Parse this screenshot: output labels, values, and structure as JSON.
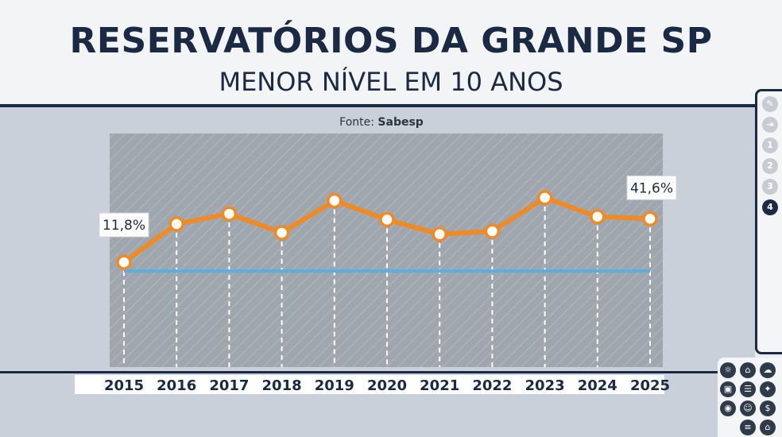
{
  "header": {
    "title": "RESERVATÓRIOS DA GRANDE SP",
    "subtitle": "MENOR NÍVEL EM 10 ANOS",
    "source_prefix": "Fonte: ",
    "source_name": "Sabesp"
  },
  "chart_data": {
    "type": "line",
    "title": "RESERVATÓRIOS DA GRANDE SP",
    "subtitle": "MENOR NÍVEL EM 10 ANOS",
    "x": [
      "2015",
      "2016",
      "2017",
      "2018",
      "2019",
      "2020",
      "2021",
      "2022",
      "2023",
      "2024",
      "2025"
    ],
    "series": [
      {
        "values": [
          11.8,
          38,
          45,
          32,
          54,
          41,
          31,
          33,
          56,
          43,
          41.6
        ],
        "color": "#f08a24"
      }
    ],
    "reference_line": {
      "value": 11.8,
      "color": "#5aaee0"
    },
    "data_labels": [
      {
        "index": 0,
        "text": "11,8%"
      },
      {
        "index": 10,
        "text": "41,6%"
      }
    ],
    "ylim": [
      -60,
      100
    ],
    "xlabel": "",
    "ylabel": "",
    "grid": false,
    "legend": "none"
  },
  "side_panel": {
    "items": [
      {
        "icon": "pencil-icon",
        "label": ""
      },
      {
        "icon": "exit-icon",
        "label": ""
      },
      {
        "icon": "",
        "label": "1"
      },
      {
        "icon": "",
        "label": "2"
      },
      {
        "icon": "",
        "label": "3"
      },
      {
        "icon": "",
        "label": "4"
      }
    ],
    "active_index": 5
  },
  "colors": {
    "navy": "#1b2a44",
    "orange": "#f08a24",
    "reference": "#5aaee0",
    "board": "#c9d0d9",
    "plot": "#9ea5ad"
  }
}
